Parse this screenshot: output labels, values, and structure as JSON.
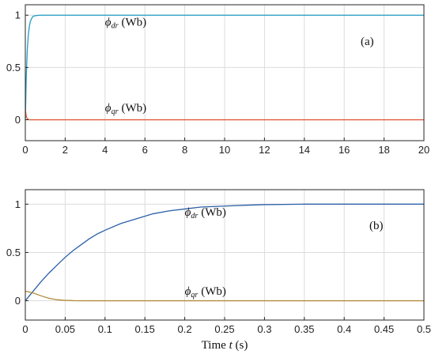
{
  "chart_data": [
    {
      "type": "line",
      "panel_label": "(a)",
      "xlim": [
        0,
        20
      ],
      "ylim": [
        -0.2,
        1.1
      ],
      "xticks": [
        0,
        2,
        4,
        6,
        8,
        10,
        12,
        14,
        16,
        18,
        20
      ],
      "yticks": [
        0,
        0.5,
        1
      ],
      "xlabel": "",
      "ylabel": "",
      "grid": true,
      "series": [
        {
          "name": "phi_dr",
          "color": "#1f9bc4",
          "x": [
            0,
            0.05,
            0.1,
            0.15,
            0.2,
            0.25,
            0.3,
            0.35,
            0.4,
            0.5,
            0.7,
            1,
            2,
            5,
            10,
            15,
            20
          ],
          "y": [
            0,
            0.43,
            0.67,
            0.81,
            0.89,
            0.94,
            0.96,
            0.98,
            0.99,
            0.995,
            1,
            1,
            1,
            1,
            1,
            1,
            1
          ]
        },
        {
          "name": "phi_qr",
          "color": "#e05a3a",
          "x": [
            0,
            0.05,
            0.1,
            0.2,
            0.5,
            1,
            5,
            10,
            15,
            20
          ],
          "y": [
            0.1,
            0.03,
            0.01,
            0,
            0,
            0,
            0,
            0,
            0,
            0
          ]
        }
      ],
      "annotations": [
        {
          "series": "phi_dr",
          "symbol": "ϕ",
          "sub": "dr",
          "unit": "(Wb)",
          "x": 4.0,
          "y": 0.9
        },
        {
          "series": "phi_qr",
          "symbol": "ϕ",
          "sub": "qr",
          "unit": "(Wb)",
          "x": 4.0,
          "y": 0.08
        }
      ]
    },
    {
      "type": "line",
      "panel_label": "(b)",
      "xlim": [
        0,
        0.5
      ],
      "ylim": [
        -0.2,
        1.15
      ],
      "xticks": [
        0,
        0.05,
        0.1,
        0.15,
        0.2,
        0.25,
        0.3,
        0.35,
        0.4,
        0.45,
        0.5
      ],
      "yticks": [
        0,
        0.5,
        1
      ],
      "xlabel": "Time t (s)",
      "xlabel_parts": {
        "text": "Time",
        "var": "t",
        "unit": "(s)"
      },
      "ylabel": "",
      "grid": true,
      "series": [
        {
          "name": "phi_dr",
          "color": "#2b5fa8",
          "x": [
            0,
            0.01,
            0.02,
            0.03,
            0.04,
            0.05,
            0.06,
            0.07,
            0.08,
            0.09,
            0.1,
            0.12,
            0.14,
            0.16,
            0.18,
            0.2,
            0.22,
            0.25,
            0.28,
            0.3,
            0.35,
            0.4,
            0.45,
            0.5
          ],
          "y": [
            0,
            0.1,
            0.2,
            0.29,
            0.37,
            0.45,
            0.52,
            0.58,
            0.64,
            0.69,
            0.73,
            0.8,
            0.85,
            0.9,
            0.93,
            0.95,
            0.97,
            0.98,
            0.99,
            0.995,
            1,
            1,
            1,
            1
          ]
        },
        {
          "name": "phi_qr",
          "color": "#b08a3a",
          "x": [
            0,
            0.01,
            0.02,
            0.03,
            0.04,
            0.05,
            0.06,
            0.08,
            0.1,
            0.2,
            0.3,
            0.4,
            0.5
          ],
          "y": [
            0.1,
            0.08,
            0.05,
            0.025,
            0.01,
            0.004,
            0.001,
            0,
            0,
            0,
            0,
            0,
            0
          ]
        }
      ],
      "annotations": [
        {
          "series": "phi_dr",
          "symbol": "ϕ",
          "sub": "dr",
          "unit": "(Wb)",
          "x": 0.2,
          "y": 0.88
        },
        {
          "series": "phi_qr",
          "symbol": "ϕ",
          "sub": "qr",
          "unit": "(Wb)",
          "x": 0.2,
          "y": 0.06
        }
      ]
    }
  ]
}
